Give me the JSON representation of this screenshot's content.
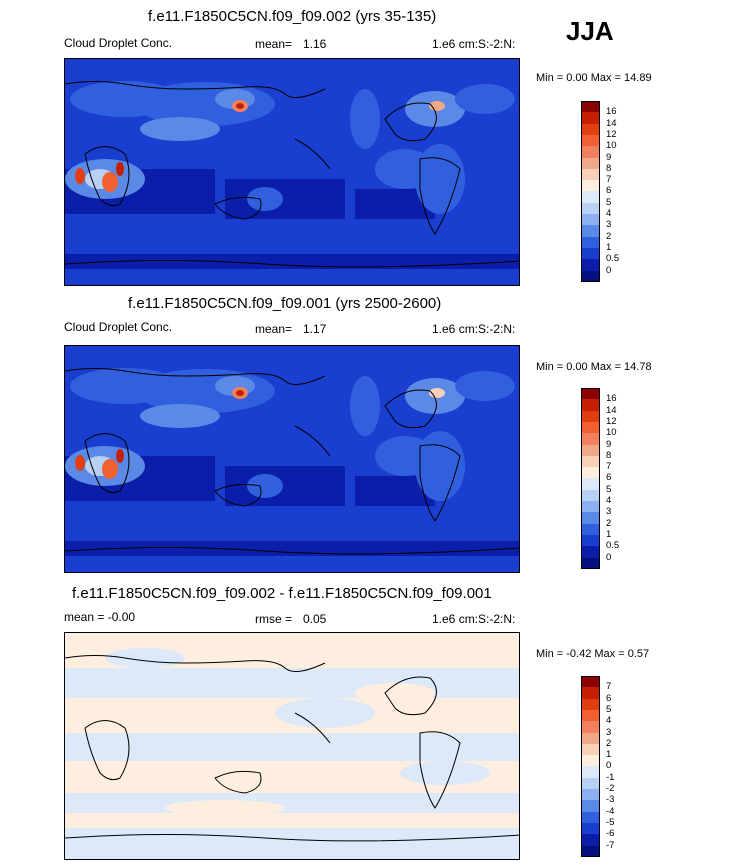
{
  "season": "JJA",
  "panels": [
    {
      "title": "f.e11.F1850C5CN.f09_f09.002 (yrs 35-135)",
      "left_text": "Cloud Droplet Conc.",
      "stat_label": "mean=",
      "stat_value": "1.16",
      "units": "1.e6 cm:S:-2:N:",
      "minmax": "Min =   0.00 Max =  14.89",
      "kind": "field"
    },
    {
      "title": "f.e11.F1850C5CN.f09_f09.001 (yrs 2500-2600)",
      "left_text": "Cloud Droplet Conc.",
      "stat_label": "mean=",
      "stat_value": "1.17",
      "units": "1.e6 cm:S:-2:N:",
      "minmax": "Min =   0.00 Max =  14.78",
      "kind": "field"
    },
    {
      "title": "f.e11.F1850C5CN.f09_f09.002 - f.e11.F1850C5CN.f09_f09.001",
      "left_text": "mean =  -0.00",
      "stat_label": "rmse =",
      "stat_value": "0.05",
      "units": "1.e6 cm:S:-2:N:",
      "minmax": "Min =  -0.42 Max =   0.57",
      "kind": "diff"
    }
  ],
  "colorbars": {
    "field": {
      "labels": [
        "16",
        "14",
        "12",
        "10",
        "9",
        "8",
        "7",
        "6",
        "5",
        "4",
        "3",
        "2",
        "1",
        "0.5",
        "0"
      ],
      "colors": [
        "#8b0000",
        "#c42000",
        "#e04010",
        "#f06030",
        "#f08060",
        "#f0a888",
        "#f8d0b8",
        "#fdeee0",
        "#dde8f8",
        "#b8d0f4",
        "#8cb0ee",
        "#5a8ae6",
        "#3060de",
        "#1a3ed0",
        "#0a1eaa",
        "#04107e"
      ]
    },
    "diff": {
      "labels": [
        "7",
        "6",
        "5",
        "4",
        "3",
        "2",
        "1",
        "0",
        "-1",
        "-2",
        "-3",
        "-4",
        "-5",
        "-6",
        "-7"
      ],
      "colors": [
        "#8b0000",
        "#c42000",
        "#e04010",
        "#f06030",
        "#f08060",
        "#f0a888",
        "#f8d0b8",
        "#fdeee0",
        "#dde8f8",
        "#b8d0f4",
        "#8cb0ee",
        "#5a8ae6",
        "#3060de",
        "#1a3ed0",
        "#0a1eaa",
        "#04107e"
      ]
    }
  },
  "chart_data": [
    {
      "type": "heatmap",
      "title": "f.e11.F1850C5CN.f09_f09.002 (yrs 35-135)",
      "variable": "Cloud Droplet Conc.",
      "units": "1.e6 cm:S:-2:N:",
      "mean": 1.16,
      "min": 0.0,
      "max": 14.89,
      "contour_levels": [
        0,
        0.5,
        1,
        2,
        3,
        4,
        5,
        6,
        7,
        8,
        9,
        10,
        12,
        14,
        16
      ]
    },
    {
      "type": "heatmap",
      "title": "f.e11.F1850C5CN.f09_f09.001 (yrs 2500-2600)",
      "variable": "Cloud Droplet Conc.",
      "units": "1.e6 cm:S:-2:N:",
      "mean": 1.17,
      "min": 0.0,
      "max": 14.78,
      "contour_levels": [
        0,
        0.5,
        1,
        2,
        3,
        4,
        5,
        6,
        7,
        8,
        9,
        10,
        12,
        14,
        16
      ]
    },
    {
      "type": "heatmap",
      "title": "f.e11.F1850C5CN.f09_f09.002 - f.e11.F1850C5CN.f09_f09.001",
      "units": "1.e6 cm:S:-2:N:",
      "mean": -0.0,
      "rmse": 0.05,
      "min": -0.42,
      "max": 0.57,
      "contour_levels": [
        -7,
        -6,
        -5,
        -4,
        -3,
        -2,
        -1,
        0,
        1,
        2,
        3,
        4,
        5,
        6,
        7
      ]
    }
  ]
}
